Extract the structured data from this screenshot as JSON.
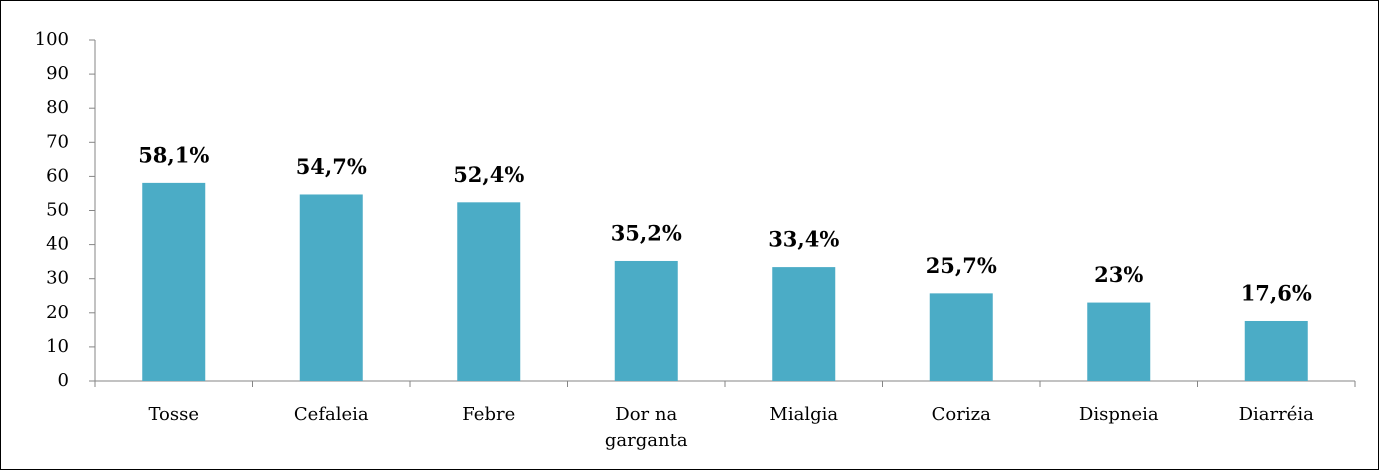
{
  "chart_data": {
    "type": "bar",
    "categories": [
      "Tosse",
      "Cefaleia",
      "Febre",
      "Dor na garganta",
      "Mialgia",
      "Coriza",
      "Dispneia",
      "Diarréia"
    ],
    "values": [
      58.1,
      54.7,
      52.4,
      35.2,
      33.4,
      25.7,
      23,
      17.6
    ],
    "value_labels": [
      "58,1%",
      "54,7%",
      "52,4%",
      "35,2%",
      "33,4%",
      "25,7%",
      "23%",
      "17,6%"
    ],
    "color": "#4bacc6",
    "ylim": [
      0,
      100
    ],
    "yticks": [
      0,
      10,
      20,
      30,
      40,
      50,
      60,
      70,
      80,
      90,
      100
    ],
    "grid": false
  }
}
